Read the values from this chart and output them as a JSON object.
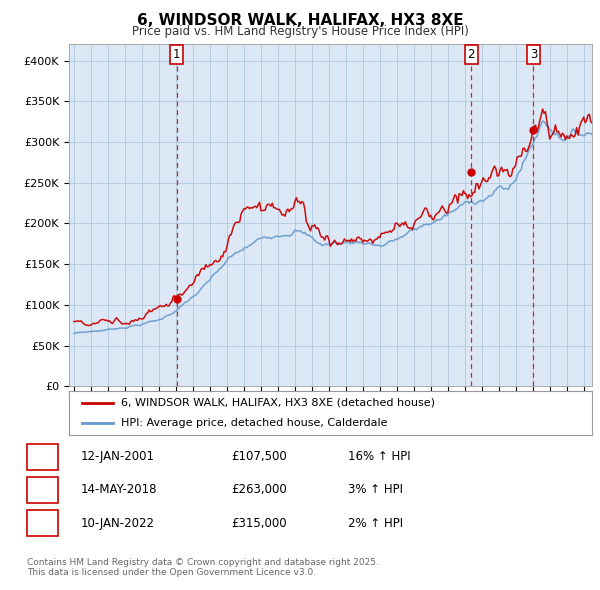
{
  "title": "6, WINDSOR WALK, HALIFAX, HX3 8XE",
  "subtitle": "Price paid vs. HM Land Registry's House Price Index (HPI)",
  "ylabel_ticks": [
    "£0",
    "£50K",
    "£100K",
    "£150K",
    "£200K",
    "£250K",
    "£300K",
    "£350K",
    "£400K"
  ],
  "ytick_values": [
    0,
    50000,
    100000,
    150000,
    200000,
    250000,
    300000,
    350000,
    400000
  ],
  "ylim": [
    0,
    420000
  ],
  "xlim_start": 1994.7,
  "xlim_end": 2025.5,
  "legend_line1": "6, WINDSOR WALK, HALIFAX, HX3 8XE (detached house)",
  "legend_line2": "HPI: Average price, detached house, Calderdale",
  "sale1_label": "1",
  "sale1_date": "12-JAN-2001",
  "sale1_price": "£107,500",
  "sale1_hpi": "16% ↑ HPI",
  "sale1_year": 2001.04,
  "sale1_value": 107500,
  "sale2_label": "2",
  "sale2_date": "14-MAY-2018",
  "sale2_price": "£263,000",
  "sale2_hpi": "3% ↑ HPI",
  "sale2_year": 2018.37,
  "sale2_value": 263000,
  "sale3_label": "3",
  "sale3_date": "10-JAN-2022",
  "sale3_price": "£315,000",
  "sale3_hpi": "2% ↑ HPI",
  "sale3_year": 2022.04,
  "sale3_value": 315000,
  "hpi_color": "#6699cc",
  "price_color": "#cc0000",
  "dashed_line_color": "#cc0000",
  "chart_bg_color": "#dce8f5",
  "background_color": "#ffffff",
  "grid_color": "#aec8e0",
  "footer_text": "Contains HM Land Registry data © Crown copyright and database right 2025.\nThis data is licensed under the Open Government Licence v3.0."
}
